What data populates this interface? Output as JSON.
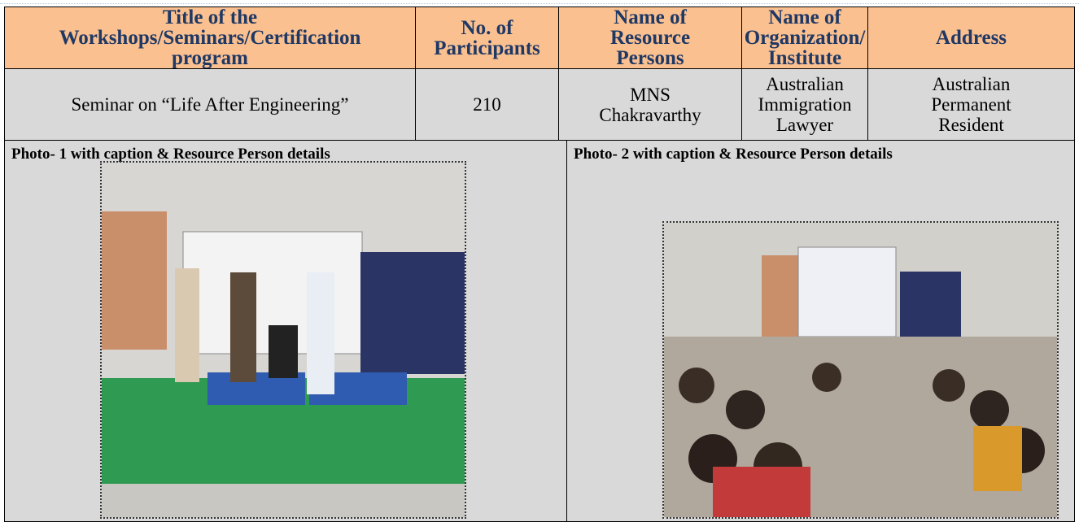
{
  "table": {
    "headers": [
      "Title of the\nWorkshops/Seminars/Certification\nprogram",
      "No. of\nParticipants",
      "Name of\nResource\nPersons",
      "Name of\nOrganization/\nInstitute",
      "Address"
    ],
    "rows": [
      [
        "Seminar on “Life After Engineering”",
        "210",
        "MNS\nChakravarthy",
        "Australian\nImmigration\nLawyer",
        "Australian\nPermanent\nResident"
      ]
    ]
  },
  "photos": [
    {
      "caption": "Photo- 1 with caption & Resource Person details"
    },
    {
      "caption": "Photo- 2 with caption & Resource Person details"
    }
  ]
}
